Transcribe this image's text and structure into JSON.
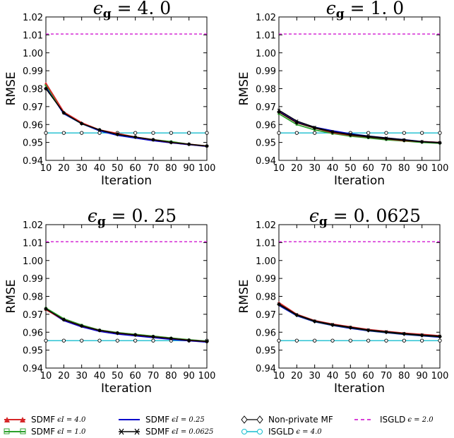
{
  "chart_data": [
    {
      "type": "line",
      "title": "ε_g = 4.0",
      "title_parts": {
        "sym": "ϵ",
        "sub": "g",
        "eq": " = 4. 0"
      },
      "xlabel": "Iteration",
      "ylabel": "RMSE",
      "x": [
        10,
        20,
        30,
        40,
        50,
        60,
        70,
        80,
        90,
        100
      ],
      "xticks": [
        "10",
        "20",
        "30",
        "40",
        "50",
        "60",
        "70",
        "80",
        "90",
        "100"
      ],
      "yticks": [
        "0.94",
        "0.95",
        "0.96",
        "0.97",
        "0.98",
        "0.99",
        "1.00",
        "1.01",
        "1.02"
      ],
      "ylim": [
        0.94,
        1.02
      ],
      "series": [
        {
          "key": "eps4",
          "values": [
            0.983,
            0.967,
            0.961,
            0.957,
            0.955,
            0.953,
            0.9515,
            0.95,
            0.949,
            0.948
          ]
        },
        {
          "key": "eps1",
          "values": [
            0.982,
            0.9665,
            0.9605,
            0.957,
            0.9545,
            0.953,
            0.9515,
            0.9505,
            0.949,
            0.948
          ]
        },
        {
          "key": "eps025",
          "values": [
            0.981,
            0.966,
            0.9605,
            0.9565,
            0.954,
            0.9525,
            0.951,
            0.9498,
            0.9488,
            0.9478
          ]
        },
        {
          "key": "eps00625",
          "values": [
            0.98,
            0.9665,
            0.9605,
            0.957,
            0.9545,
            0.953,
            0.9515,
            0.95,
            0.949,
            0.948
          ]
        },
        {
          "key": "nonprivate",
          "values": [
            0.98,
            0.9665,
            0.9605,
            0.957,
            0.9545,
            0.953,
            0.9515,
            0.95,
            0.949,
            0.948
          ]
        },
        {
          "key": "isgld4",
          "values": [
            0.9553,
            0.9553,
            0.9553,
            0.9553,
            0.9553,
            0.9553,
            0.9553,
            0.9553,
            0.9553,
            0.9553
          ]
        },
        {
          "key": "isgld2",
          "values": [
            1.0105,
            1.0105,
            1.0105,
            1.0105,
            1.0105,
            1.0105,
            1.0105,
            1.0105,
            1.0105,
            1.0105
          ]
        }
      ]
    },
    {
      "type": "line",
      "title": "ε_g = 1.0",
      "title_parts": {
        "sym": "ϵ",
        "sub": "g",
        "eq": " = 1. 0"
      },
      "xlabel": "Iteration",
      "ylabel": "RMSE",
      "x": [
        10,
        20,
        30,
        40,
        50,
        60,
        70,
        80,
        90,
        100
      ],
      "xticks": [
        "10",
        "20",
        "30",
        "40",
        "50",
        "60",
        "70",
        "80",
        "90",
        "100"
      ],
      "yticks": [
        "0.94",
        "0.95",
        "0.96",
        "0.97",
        "0.98",
        "0.99",
        "1.00",
        "1.01",
        "1.02"
      ],
      "ylim": [
        0.94,
        1.02
      ],
      "series": [
        {
          "key": "eps4",
          "values": [
            0.967,
            0.961,
            0.958,
            0.9555,
            0.954,
            0.953,
            0.952,
            0.951,
            0.9505,
            0.95
          ]
        },
        {
          "key": "eps1",
          "values": [
            0.966,
            0.96,
            0.957,
            0.955,
            0.9535,
            0.9525,
            0.9515,
            0.9508,
            0.95,
            0.9495
          ]
        },
        {
          "key": "eps025",
          "values": [
            0.9675,
            0.9615,
            0.9585,
            0.9565,
            0.9548,
            0.9535,
            0.9525,
            0.9515,
            0.9505,
            0.95
          ]
        },
        {
          "key": "eps00625",
          "values": [
            0.968,
            0.962,
            0.9585,
            0.956,
            0.9545,
            0.9535,
            0.9525,
            0.9515,
            0.9505,
            0.95
          ]
        },
        {
          "key": "nonprivate",
          "values": [
            0.967,
            0.961,
            0.958,
            0.9558,
            0.9542,
            0.953,
            0.952,
            0.9512,
            0.9503,
            0.9497
          ]
        },
        {
          "key": "isgld4",
          "values": [
            0.9553,
            0.9553,
            0.9553,
            0.9553,
            0.9553,
            0.9553,
            0.9553,
            0.9553,
            0.9553,
            0.9553
          ]
        },
        {
          "key": "isgld2",
          "values": [
            1.0105,
            1.0105,
            1.0105,
            1.0105,
            1.0105,
            1.0105,
            1.0105,
            1.0105,
            1.0105,
            1.0105
          ]
        }
      ]
    },
    {
      "type": "line",
      "title": "ε_g = 0.25",
      "title_parts": {
        "sym": "ϵ",
        "sub": "g",
        "eq": " = 0. 25"
      },
      "xlabel": "Iteration",
      "ylabel": "RMSE",
      "x": [
        10,
        20,
        30,
        40,
        50,
        60,
        70,
        80,
        90,
        100
      ],
      "xticks": [
        "10",
        "20",
        "30",
        "40",
        "50",
        "60",
        "70",
        "80",
        "90",
        "100"
      ],
      "yticks": [
        "0.94",
        "0.95",
        "0.96",
        "0.97",
        "0.98",
        "0.99",
        "1.00",
        "1.01",
        "1.02"
      ],
      "ylim": [
        0.94,
        1.02
      ],
      "series": [
        {
          "key": "eps4",
          "values": [
            0.9725,
            0.967,
            0.9635,
            0.961,
            0.9595,
            0.9585,
            0.9575,
            0.9565,
            0.9555,
            0.9548
          ]
        },
        {
          "key": "eps1",
          "values": [
            0.9735,
            0.9675,
            0.964,
            0.9612,
            0.9598,
            0.9588,
            0.9578,
            0.9568,
            0.9558,
            0.955
          ]
        },
        {
          "key": "eps025",
          "values": [
            0.9728,
            0.9665,
            0.963,
            0.9605,
            0.959,
            0.958,
            0.957,
            0.956,
            0.9552,
            0.9545
          ]
        },
        {
          "key": "eps00625",
          "values": [
            0.973,
            0.967,
            0.9635,
            0.961,
            0.9595,
            0.9585,
            0.9575,
            0.9565,
            0.9555,
            0.9548
          ]
        },
        {
          "key": "nonprivate",
          "values": [
            0.973,
            0.967,
            0.9635,
            0.961,
            0.9595,
            0.9585,
            0.9575,
            0.9565,
            0.9555,
            0.9548
          ]
        },
        {
          "key": "isgld4",
          "values": [
            0.9553,
            0.9553,
            0.9553,
            0.9553,
            0.9553,
            0.9553,
            0.9553,
            0.9553,
            0.9553,
            0.9553
          ]
        },
        {
          "key": "isgld2",
          "values": [
            1.0105,
            1.0105,
            1.0105,
            1.0105,
            1.0105,
            1.0105,
            1.0105,
            1.0105,
            1.0105,
            1.0105
          ]
        }
      ]
    },
    {
      "type": "line",
      "title": "ε_g = 0.0625",
      "title_parts": {
        "sym": "ϵ",
        "sub": "g",
        "eq": " = 0. 0625"
      },
      "xlabel": "Iteration",
      "ylabel": "RMSE",
      "x": [
        10,
        20,
        30,
        40,
        50,
        60,
        70,
        80,
        90,
        100
      ],
      "xticks": [
        "10",
        "20",
        "30",
        "40",
        "50",
        "60",
        "70",
        "80",
        "90",
        "100"
      ],
      "yticks": [
        "0.94",
        "0.95",
        "0.96",
        "0.97",
        "0.98",
        "0.99",
        "1.00",
        "1.01",
        "1.02"
      ],
      "ylim": [
        0.94,
        1.02
      ],
      "series": [
        {
          "key": "eps4",
          "values": [
            0.9765,
            0.97,
            0.9665,
            0.9645,
            0.963,
            0.9615,
            0.9605,
            0.9595,
            0.9588,
            0.958
          ]
        },
        {
          "key": "eps1",
          "values": [
            0.9755,
            0.9695,
            0.966,
            0.964,
            0.9625,
            0.961,
            0.96,
            0.959,
            0.9582,
            0.9575
          ]
        },
        {
          "key": "eps025",
          "values": [
            0.975,
            0.9692,
            0.9658,
            0.9638,
            0.9622,
            0.9608,
            0.9598,
            0.9588,
            0.958,
            0.9572
          ]
        },
        {
          "key": "eps00625",
          "values": [
            0.9758,
            0.9698,
            0.9663,
            0.9643,
            0.9628,
            0.9613,
            0.9603,
            0.9593,
            0.9585,
            0.9578
          ]
        },
        {
          "key": "nonprivate",
          "values": [
            0.9755,
            0.9695,
            0.966,
            0.964,
            0.9625,
            0.961,
            0.96,
            0.959,
            0.9582,
            0.9575
          ]
        },
        {
          "key": "isgld4",
          "values": [
            0.9553,
            0.9553,
            0.9553,
            0.9553,
            0.9553,
            0.9553,
            0.9553,
            0.9553,
            0.9553,
            0.9553
          ]
        },
        {
          "key": "isgld2",
          "values": [
            1.0105,
            1.0105,
            1.0105,
            1.0105,
            1.0105,
            1.0105,
            1.0105,
            1.0105,
            1.0105,
            1.0105
          ]
        }
      ]
    }
  ],
  "legend": [
    {
      "key": "eps4",
      "label": "SDMF",
      "math": "ϵI = 4.0",
      "color": "#d62728",
      "marker": "triangle",
      "dash": false
    },
    {
      "key": "eps1",
      "label": "SDMF",
      "math": "ϵI = 1.0",
      "color": "#2ca02c",
      "marker": "square",
      "dash": false
    },
    {
      "key": "eps025",
      "label": "SDMF",
      "math": "ϵI = 0.25",
      "color": "#0000cc",
      "marker": "none",
      "dash": false
    },
    {
      "key": "eps00625",
      "label": "SDMF",
      "math": "ϵI = 0.0625",
      "color": "#000000",
      "marker": "x",
      "dash": false
    },
    {
      "key": "nonprivate",
      "label": "Non-private MF",
      "math": "",
      "color": "#000000",
      "marker": "diamond",
      "dash": false
    },
    {
      "key": "isgld4",
      "label": "ISGLD",
      "math": "ϵ = 4.0",
      "color": "#17becf",
      "marker": "circle",
      "dash": false
    },
    {
      "key": "isgld2",
      "label": "ISGLD",
      "math": "ϵ = 2.0",
      "color": "#cc00cc",
      "marker": "none",
      "dash": true
    }
  ]
}
